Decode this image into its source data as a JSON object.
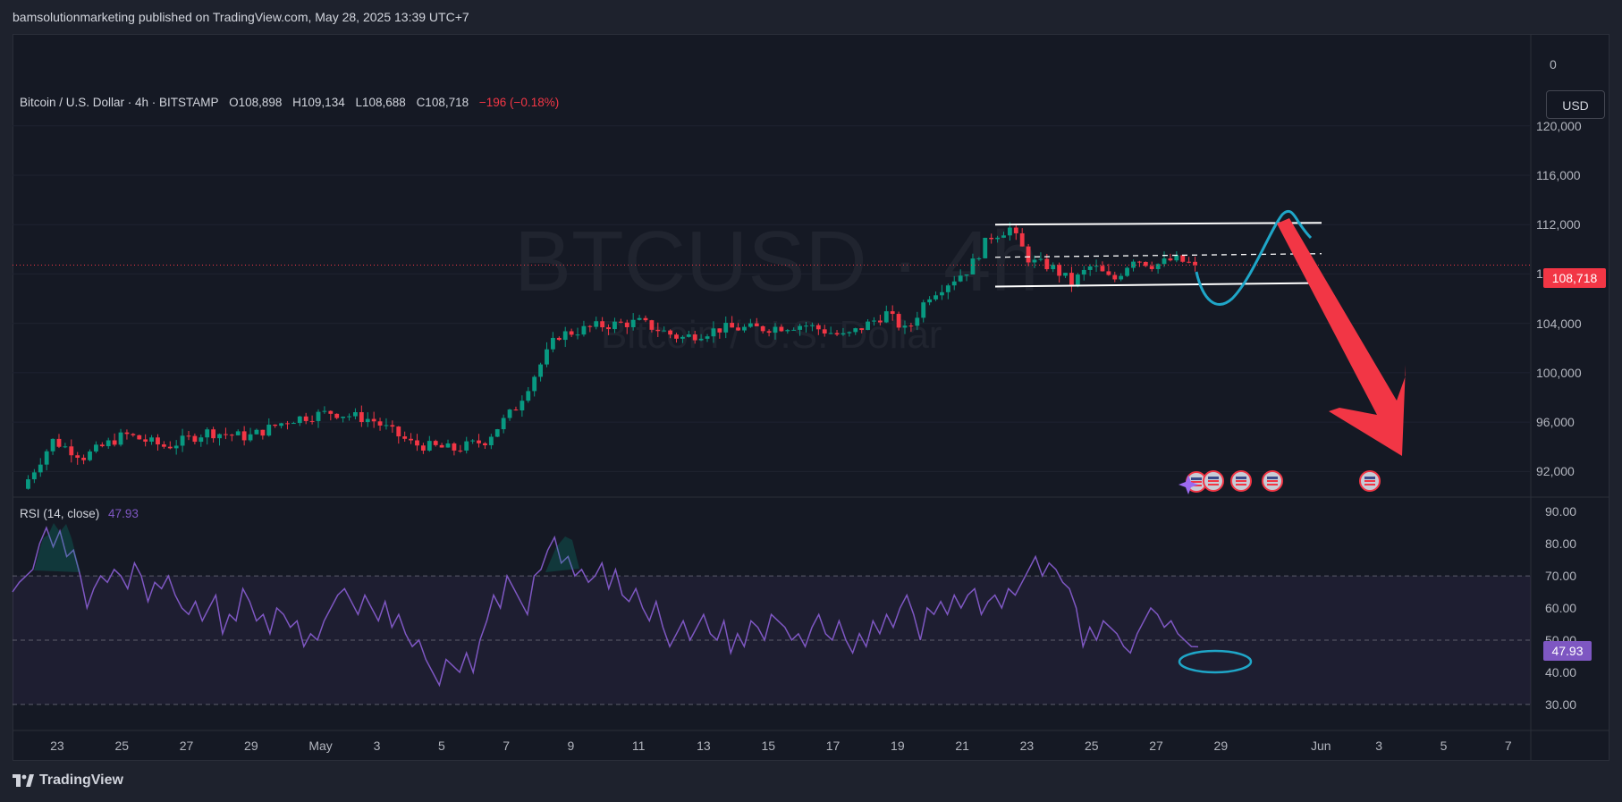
{
  "header": {
    "published": "bamsolutionmarketing published on TradingView.com, May 28, 2025 13:39 UTC+7"
  },
  "legend": {
    "symbol": "Bitcoin / U.S. Dollar · 4h · BITSTAMP",
    "open": "O108,898",
    "high": "H109,134",
    "low": "L108,688",
    "close": "C108,718",
    "change": "−196 (−0.18%)"
  },
  "rsi_legend": {
    "label": "RSI (14, close)",
    "value": "47.93"
  },
  "currency_button": "USD",
  "watermark": {
    "ticker": "BTCUSD · 4h",
    "name": "Bitcoin / U.S. Dollar"
  },
  "price_axis": {
    "labels": [
      "0",
      "120,000",
      "116,000",
      "112,000",
      "108,000",
      "104,000",
      "100,000",
      "96,000",
      "92,000"
    ],
    "current_price": "108,718"
  },
  "rsi_axis": {
    "labels": [
      "90.00",
      "80.00",
      "70.00",
      "60.00",
      "50.00",
      "40.00",
      "30.00"
    ],
    "current_value": "47.93"
  },
  "time_axis": {
    "labels": [
      "23",
      "25",
      "27",
      "29",
      "May",
      "3",
      "5",
      "7",
      "9",
      "11",
      "13",
      "15",
      "17",
      "19",
      "21",
      "23",
      "25",
      "27",
      "29",
      "Jun",
      "3",
      "5",
      "7"
    ]
  },
  "footer": {
    "brand": "TradingView"
  },
  "colors": {
    "up": "#089981",
    "down": "#f23645",
    "rsi": "#7e57c2",
    "projection": "#1fa6c8",
    "arrow": "#f23645"
  },
  "chart_data": [
    {
      "type": "candlestick",
      "title": "Bitcoin / U.S. Dollar · 4h · BITSTAMP",
      "timeframe": "4h",
      "x_range": [
        "Apr 22",
        "Jun 8"
      ],
      "ylim": [
        90000,
        121500
      ],
      "price_ticks": [
        92000,
        96000,
        100000,
        104000,
        108000,
        112000,
        116000,
        120000
      ],
      "close_path": [
        [
          0,
          90600
        ],
        [
          1.5,
          94500
        ],
        [
          3,
          93200
        ],
        [
          5,
          95000
        ],
        [
          7,
          94000
        ],
        [
          9,
          95200
        ],
        [
          11,
          94800
        ],
        [
          13,
          96200
        ],
        [
          15,
          96800
        ],
        [
          17,
          96200
        ],
        [
          19,
          94200
        ],
        [
          21,
          93800
        ],
        [
          22.5,
          94500
        ],
        [
          24,
          97200
        ],
        [
          26,
          103000
        ],
        [
          28,
          103800
        ],
        [
          30,
          104100
        ],
        [
          32,
          102800
        ],
        [
          34,
          103600
        ],
        [
          36,
          103600
        ],
        [
          38,
          103900
        ],
        [
          40,
          102900
        ],
        [
          42,
          104800
        ],
        [
          43,
          103300
        ],
        [
          44,
          106200
        ],
        [
          46,
          108400
        ],
        [
          47,
          111000
        ],
        [
          48,
          111700
        ],
        [
          49,
          109000
        ],
        [
          50,
          108600
        ],
        [
          51,
          107300
        ],
        [
          52,
          108700
        ],
        [
          53,
          107400
        ],
        [
          54,
          109300
        ],
        [
          55,
          108700
        ],
        [
          56,
          109200
        ],
        [
          57,
          108718
        ]
      ],
      "channel": {
        "top": 112000,
        "middle": 109500,
        "bottom": 107200
      },
      "last_price": 108718
    },
    {
      "type": "line",
      "title": "RSI (14, close)",
      "ylim": [
        28,
        92
      ],
      "levels": [
        70,
        50,
        30
      ],
      "rsi_ticks": [
        30,
        40,
        50,
        60,
        70,
        80,
        90
      ],
      "values": [
        65,
        68,
        70,
        72,
        80,
        85,
        79,
        84,
        76,
        78,
        70,
        60,
        66,
        70,
        68,
        72,
        70,
        66,
        74,
        70,
        62,
        68,
        66,
        70,
        64,
        60,
        58,
        62,
        56,
        60,
        64,
        52,
        58,
        56,
        66,
        62,
        56,
        58,
        52,
        60,
        58,
        54,
        56,
        48,
        52,
        50,
        56,
        60,
        64,
        66,
        62,
        58,
        64,
        60,
        56,
        62,
        54,
        58,
        52,
        48,
        50,
        44,
        40,
        36,
        44,
        42,
        40,
        46,
        40,
        50,
        56,
        64,
        60,
        70,
        66,
        62,
        58,
        70,
        72,
        78,
        82,
        74,
        76,
        70,
        72,
        68,
        70,
        74,
        66,
        72,
        64,
        62,
        66,
        60,
        56,
        62,
        54,
        48,
        52,
        56,
        50,
        54,
        58,
        52,
        50,
        56,
        46,
        52,
        48,
        56,
        54,
        50,
        58,
        56,
        54,
        50,
        52,
        48,
        54,
        58,
        52,
        50,
        56,
        50,
        46,
        52,
        48,
        56,
        52,
        58,
        54,
        60,
        64,
        58,
        50,
        60,
        58,
        62,
        58,
        64,
        60,
        64,
        66,
        58,
        62,
        64,
        60,
        66,
        64,
        68,
        72,
        76,
        70,
        74,
        72,
        68,
        66,
        60,
        48,
        54,
        50,
        56,
        54,
        52,
        48,
        46,
        52,
        56,
        60,
        58,
        54,
        56,
        52,
        50,
        48,
        47.93
      ]
    }
  ]
}
